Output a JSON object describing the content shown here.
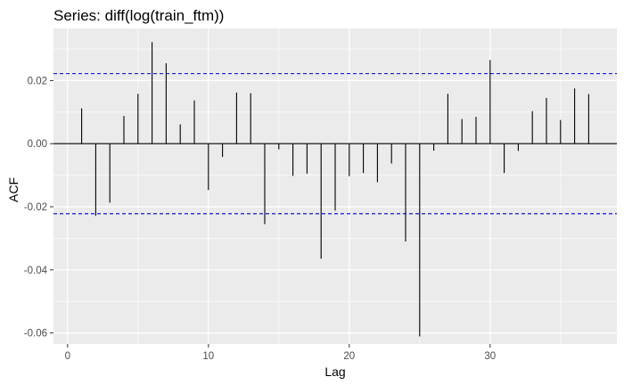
{
  "chart_data": {
    "type": "bar",
    "title": "Series: diff(log(train_ftm))",
    "xlabel": "Lag",
    "ylabel": "ACF",
    "xlim": [
      -1,
      39
    ],
    "ylim": [
      -0.0635,
      0.0365
    ],
    "x_ticks": [
      0,
      10,
      20,
      30
    ],
    "x_tick_labels": [
      "0",
      "10",
      "20",
      "30"
    ],
    "y_ticks": [
      -0.06,
      -0.04,
      -0.02,
      0,
      0.02
    ],
    "y_tick_labels": [
      "-0.06",
      "-0.04",
      "-0.02",
      "0.00",
      "0.02"
    ],
    "lags": [
      1,
      2,
      3,
      4,
      5,
      6,
      7,
      8,
      9,
      10,
      11,
      12,
      13,
      14,
      15,
      16,
      17,
      18,
      19,
      20,
      21,
      22,
      23,
      24,
      25,
      26,
      27,
      28,
      29,
      30,
      31,
      32,
      33,
      34,
      35,
      36,
      37
    ],
    "acf": [
      0.0112,
      -0.0229,
      -0.0187,
      0.0088,
      0.0158,
      0.0322,
      0.0255,
      0.0061,
      0.0137,
      -0.0147,
      -0.0042,
      0.0162,
      0.016,
      -0.0255,
      -0.0018,
      -0.0102,
      -0.0095,
      -0.0365,
      -0.0212,
      -0.0103,
      -0.0093,
      -0.0122,
      -0.0063,
      -0.031,
      -0.0611,
      -0.0022,
      0.0158,
      0.0078,
      0.0085,
      0.0265,
      -0.0093,
      -0.0023,
      0.0103,
      0.0145,
      0.0075,
      0.0175,
      0.0157
    ],
    "confidence_band": [
      -0.0222,
      0.0222
    ],
    "grid": true,
    "colors": {
      "panel_background": "#ebebeb",
      "grid_line": "#ffffff",
      "bar": "#000000",
      "band_line": "#0000cd",
      "zero_line": "#000000"
    }
  }
}
